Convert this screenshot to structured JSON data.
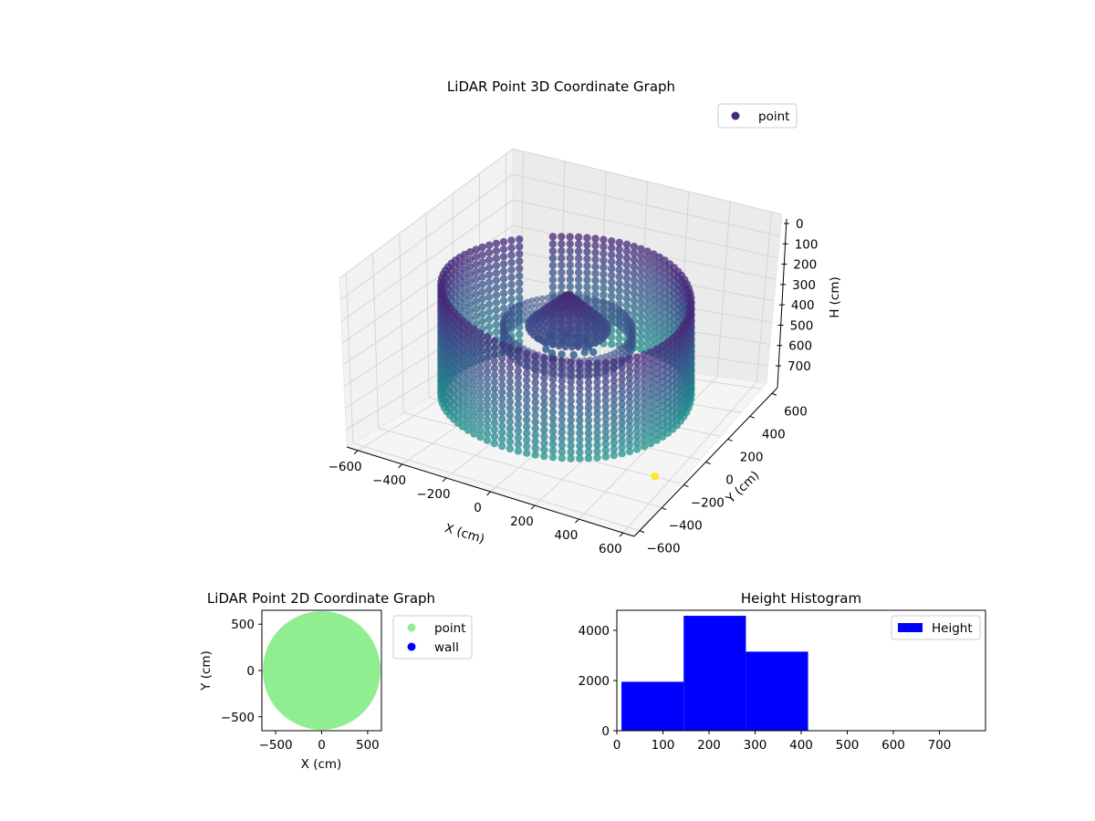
{
  "chart_data": [
    {
      "type": "scatter",
      "projection": "3d",
      "title": "LiDAR Point 3D Coordinate Graph",
      "xlabel": "X (cm)",
      "ylabel": "Y (cm)",
      "zlabel": "H (cm)",
      "xlim": [
        -650,
        650
      ],
      "ylim": [
        -650,
        650
      ],
      "zlim": [
        0,
        780
      ],
      "z_axis_inverted": true,
      "xticks": [
        "−600",
        "−400",
        "−200",
        "0",
        "200",
        "400",
        "600"
      ],
      "yticks": [
        "−600",
        "−400",
        "−200",
        "0",
        "200",
        "400",
        "600"
      ],
      "zticks": [
        "0",
        "100",
        "200",
        "300",
        "400",
        "500",
        "600",
        "700"
      ],
      "colormap": "viridis",
      "grid": true,
      "legend": {
        "placement": "top-right",
        "entries": [
          "point"
        ]
      },
      "series": [
        {
          "name": "point",
          "outer_wall": {
            "shape": "ring",
            "radius": 520,
            "h_top": 150,
            "h_bottom": 650
          },
          "inner_ring": {
            "shape": "ring",
            "radius": 270,
            "h_top": 300,
            "h_bottom": 380
          },
          "center_spike": {
            "x": 0,
            "y": 0,
            "h_top": 150,
            "h_base": 300
          },
          "floor_points": [
            [
              -90,
              -40,
              380
            ],
            [
              -60,
              -80,
              385
            ],
            [
              -20,
              -100,
              382
            ],
            [
              20,
              -90,
              380
            ],
            [
              60,
              -60,
              384
            ],
            [
              90,
              -20,
              381
            ],
            [
              80,
              30,
              383
            ],
            [
              40,
              70,
              380
            ],
            [
              -10,
              90,
              386
            ],
            [
              -50,
              70,
              380
            ],
            [
              -100,
              20,
              382
            ],
            [
              -130,
              -20,
              384
            ],
            [
              120,
              0,
              380
            ],
            [
              0,
              -130,
              383
            ],
            [
              -30,
              10,
              380
            ],
            [
              30,
              20,
              382
            ]
          ],
          "outlier": {
            "x": 520,
            "y": -200,
            "h": 780
          }
        }
      ]
    },
    {
      "type": "scatter",
      "title": "LiDAR Point 2D Coordinate Graph",
      "xlabel": "X (cm)",
      "ylabel": "Y (cm)",
      "xlim": [
        -650,
        650
      ],
      "ylim": [
        -650,
        650
      ],
      "xticks": [
        "−500",
        "0",
        "500"
      ],
      "yticks": [
        "−500",
        "0",
        "500"
      ],
      "legend": {
        "placement": "outside-right",
        "entries": [
          "point",
          "wall"
        ]
      },
      "series": [
        {
          "name": "point",
          "color": "#90ee90",
          "shape": "filled-disk",
          "radius": 640
        },
        {
          "name": "wall",
          "color": "#0000ff",
          "values": []
        }
      ]
    },
    {
      "type": "bar",
      "title": "Height Histogram",
      "xlim": [
        0,
        800
      ],
      "ylim": [
        0,
        4800
      ],
      "xticks": [
        "0",
        "100",
        "200",
        "300",
        "400",
        "500",
        "600",
        "700"
      ],
      "yticks": [
        "0",
        "2000",
        "4000"
      ],
      "legend": {
        "placement": "top-right",
        "entries": [
          "Height"
        ]
      },
      "series": [
        {
          "name": "Height",
          "color": "#0000ff",
          "bins": [
            {
              "x0": 10,
              "x1": 145,
              "value": 1950
            },
            {
              "x0": 145,
              "x1": 280,
              "value": 4580
            },
            {
              "x0": 280,
              "x1": 415,
              "value": 3150
            }
          ]
        }
      ]
    }
  ]
}
